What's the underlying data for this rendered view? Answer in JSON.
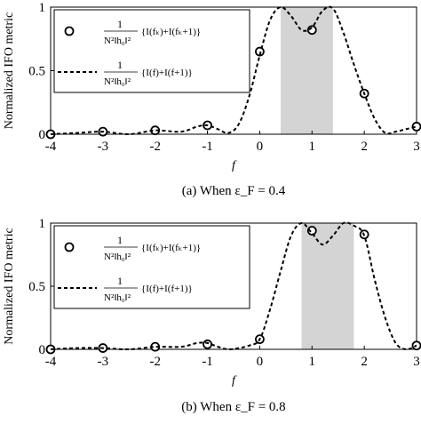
{
  "chart_data": [
    {
      "type": "line",
      "caption": "(a) When ε_F = 0.4",
      "ylabel": "Normalized IFO metric",
      "xlabel": "f",
      "xlim": [
        -4,
        3
      ],
      "ylim": [
        0,
        1
      ],
      "xticks": [
        "-4",
        "-3",
        "-2",
        "-1",
        "0",
        "1",
        "2",
        "3"
      ],
      "yticks": [
        "0",
        "0.5",
        "1"
      ],
      "shaded_region": [
        0.4,
        1.4
      ],
      "legend_position": "top-left",
      "series": [
        {
          "name": "1/(N²‖h₀‖²){I(f_k)+I(f_k+1)}",
          "style": "circle-markers",
          "x": [
            -4,
            -3,
            -2,
            -1,
            0,
            1,
            2,
            3
          ],
          "y": [
            0.0,
            0.02,
            0.03,
            0.07,
            0.65,
            0.82,
            0.32,
            0.06
          ]
        },
        {
          "name": "1/(N²‖h₀‖²){I(f)+I(f+1)}",
          "style": "dashed-line",
          "x": [
            -4,
            -3.5,
            -3,
            -2.5,
            -2,
            -1.5,
            -1.2,
            -1,
            -0.8,
            -0.6,
            -0.4,
            -0.2,
            0,
            0.2,
            0.4,
            0.6,
            0.8,
            1,
            1.2,
            1.4,
            1.6,
            1.8,
            2,
            2.2,
            2.4,
            2.6,
            2.8,
            3
          ],
          "y": [
            0.0,
            0.01,
            0.02,
            0.0,
            0.03,
            0.02,
            0.06,
            0.07,
            0.04,
            0.01,
            0.08,
            0.3,
            0.62,
            0.9,
            1.0,
            0.93,
            0.82,
            0.84,
            0.97,
            0.99,
            0.8,
            0.55,
            0.32,
            0.12,
            0.01,
            0.02,
            0.04,
            0.06
          ]
        }
      ]
    },
    {
      "type": "line",
      "caption": "(b) When ε_F = 0.8",
      "ylabel": "Normalized IFO metric",
      "xlabel": "f",
      "xlim": [
        -4,
        3
      ],
      "ylim": [
        0,
        1
      ],
      "xticks": [
        "-4",
        "-3",
        "-2",
        "-1",
        "0",
        "1",
        "2",
        "3"
      ],
      "yticks": [
        "0",
        "0.5",
        "1"
      ],
      "shaded_region": [
        0.8,
        1.8
      ],
      "legend_position": "top-left",
      "series": [
        {
          "name": "1/(N²‖h₀‖²){I(f_k)+I(f_k+1)}",
          "style": "circle-markers",
          "x": [
            -4,
            -3,
            -2,
            -1,
            0,
            1,
            2,
            3
          ],
          "y": [
            0.0,
            0.01,
            0.02,
            0.04,
            0.08,
            0.94,
            0.91,
            0.03
          ]
        },
        {
          "name": "1/(N²‖h₀‖²){I(f)+I(f+1)}",
          "style": "dashed-line",
          "x": [
            -4,
            -3.5,
            -3,
            -2.5,
            -2,
            -1.5,
            -1.2,
            -1,
            -0.8,
            -0.6,
            -0.4,
            -0.2,
            0,
            0.2,
            0.4,
            0.6,
            0.8,
            1,
            1.2,
            1.4,
            1.6,
            1.8,
            2,
            2.2,
            2.4,
            2.6,
            2.8,
            3
          ],
          "y": [
            0.0,
            0.01,
            0.01,
            0.0,
            0.02,
            0.02,
            0.05,
            0.05,
            0.02,
            0.0,
            0.01,
            0.03,
            0.08,
            0.32,
            0.62,
            0.9,
            1.0,
            0.92,
            0.83,
            0.9,
            1.0,
            0.98,
            0.9,
            0.55,
            0.25,
            0.05,
            0.0,
            0.03
          ]
        }
      ]
    }
  ]
}
